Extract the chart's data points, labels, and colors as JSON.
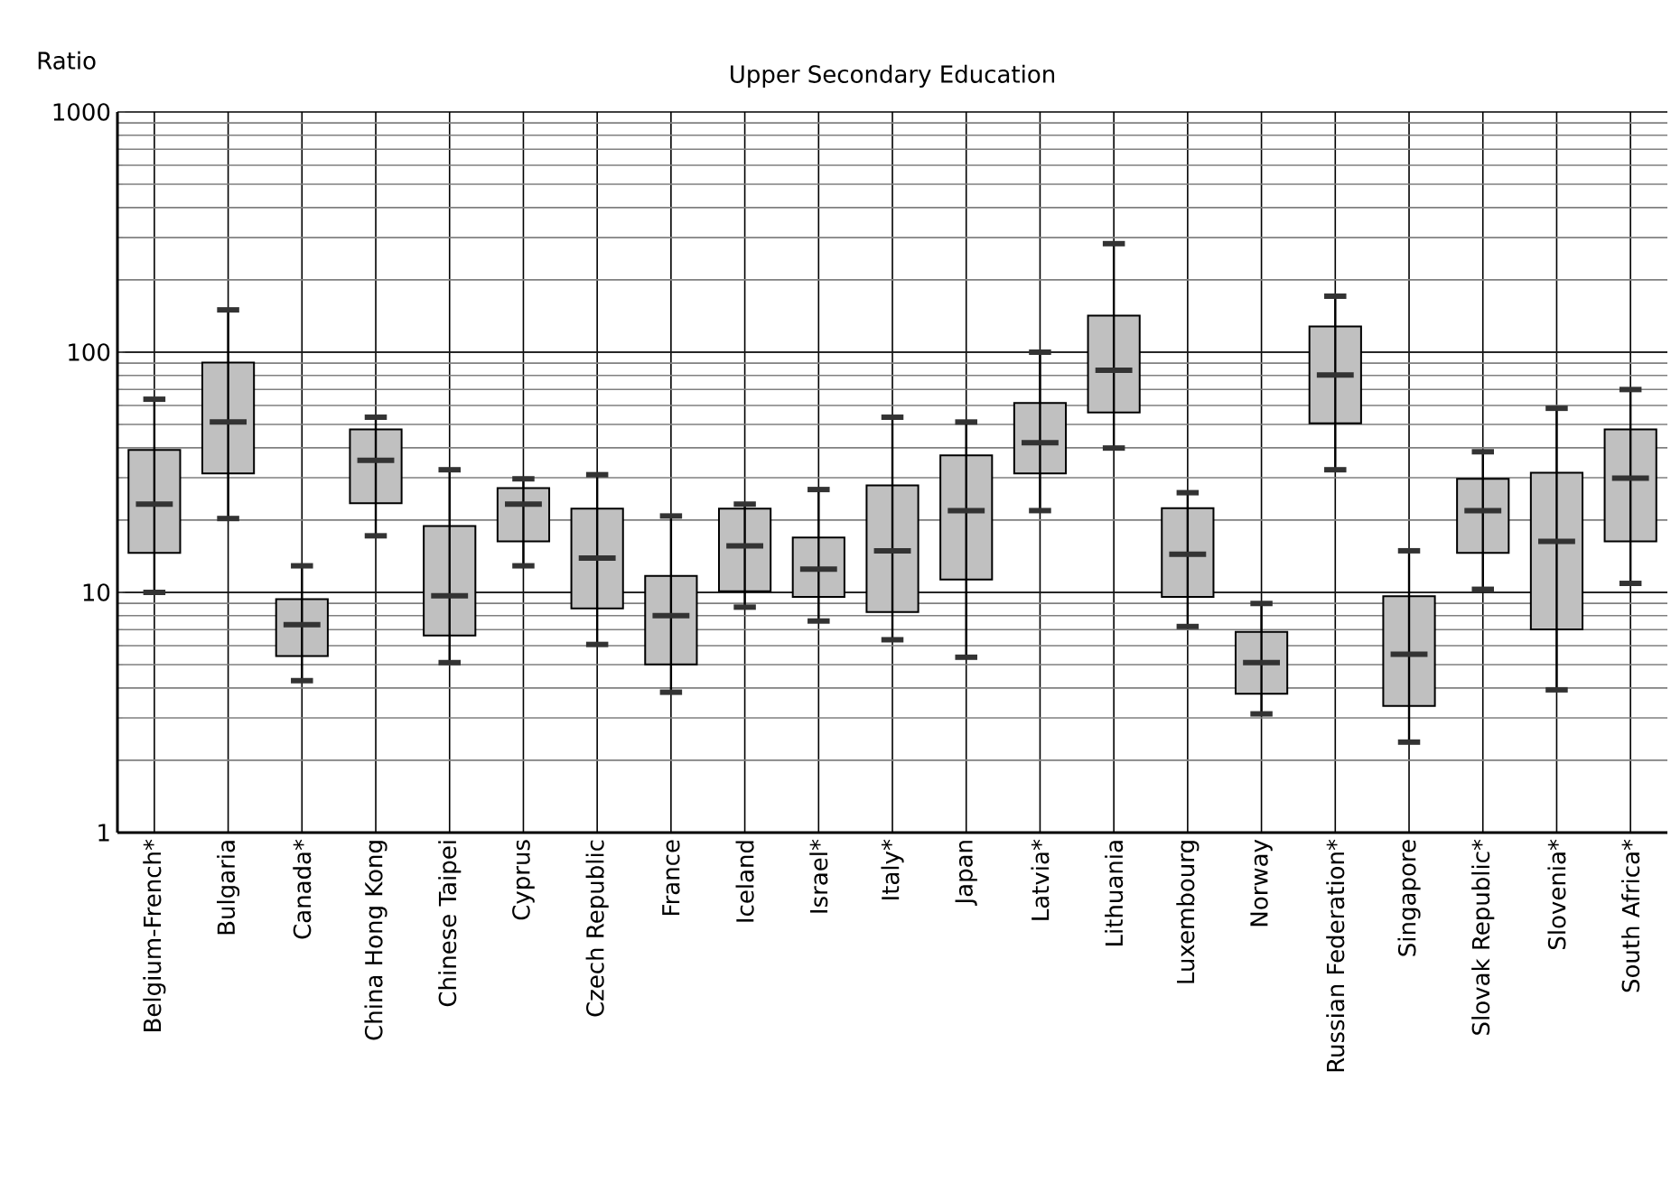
{
  "chart_data": {
    "type": "box",
    "title": "Upper Secondary Education",
    "ylabel": "Ratio",
    "categories": [
      "Belgium-French*",
      "Bulgaria",
      "Canada*",
      "China Hong Kong",
      "Chinese Taipei",
      "Cyprus",
      "Czech Republic",
      "France",
      "Iceland",
      "Israel*",
      "Italy*",
      "Japan",
      "Latvia*",
      "Lithuania",
      "Luxembourg",
      "Norway",
      "Russian Federation*",
      "Singapore",
      "Slovak Republic*",
      "Slovenia*",
      "South Africa*"
    ],
    "boxes": [
      {
        "low": 10.0,
        "q1": 14.6,
        "median": 23.3,
        "q3": 39.2,
        "high": 63.7
      },
      {
        "low": 20.3,
        "q1": 31.3,
        "median": 51.2,
        "q3": 90.6,
        "high": 150
      },
      {
        "low": 4.29,
        "q1": 5.43,
        "median": 7.34,
        "q3": 9.36,
        "high": 12.9
      },
      {
        "low": 17.2,
        "q1": 23.5,
        "median": 35.5,
        "q3": 47.7,
        "high": 53.6
      },
      {
        "low": 5.1,
        "q1": 6.62,
        "median": 9.68,
        "q3": 18.9,
        "high": 32.4
      },
      {
        "low": 12.9,
        "q1": 16.3,
        "median": 23.3,
        "q3": 27.2,
        "high": 29.7
      },
      {
        "low": 6.07,
        "q1": 8.58,
        "median": 13.9,
        "q3": 22.3,
        "high": 30.9
      },
      {
        "low": 3.84,
        "q1": 5.01,
        "median": 8.0,
        "q3": 11.7,
        "high": 20.8
      },
      {
        "low": 8.68,
        "q1": 10.1,
        "median": 15.6,
        "q3": 22.3,
        "high": 23.3
      },
      {
        "low": 7.6,
        "q1": 9.58,
        "median": 12.5,
        "q3": 16.9,
        "high": 26.8
      },
      {
        "low": 6.35,
        "q1": 8.28,
        "median": 14.9,
        "q3": 27.9,
        "high": 53.6
      },
      {
        "low": 5.37,
        "q1": 11.3,
        "median": 21.9,
        "q3": 37.2,
        "high": 51.2
      },
      {
        "low": 21.9,
        "q1": 31.3,
        "median": 42.0,
        "q3": 61.5,
        "high": 100
      },
      {
        "low": 39.9,
        "q1": 56.1,
        "median": 84.1,
        "q3": 142,
        "high": 283
      },
      {
        "low": 7.21,
        "q1": 9.58,
        "median": 14.4,
        "q3": 22.4,
        "high": 26.0
      },
      {
        "low": 3.12,
        "q1": 3.78,
        "median": 5.1,
        "q3": 6.85,
        "high": 8.99
      },
      {
        "low": 32.4,
        "q1": 50.6,
        "median": 80.3,
        "q3": 128,
        "high": 171
      },
      {
        "low": 2.38,
        "q1": 3.37,
        "median": 5.53,
        "q3": 9.63,
        "high": 14.9
      },
      {
        "low": 10.3,
        "q1": 14.6,
        "median": 21.9,
        "q3": 29.7,
        "high": 38.5
      },
      {
        "low": 3.93,
        "q1": 7.01,
        "median": 16.3,
        "q3": 31.5,
        "high": 58.4
      },
      {
        "low": 10.9,
        "q1": 16.3,
        "median": 29.9,
        "q3": 47.7,
        "high": 69.9
      }
    ],
    "color": "#c0c0c0",
    "ylim": [
      1,
      1000
    ],
    "yticks": [
      1,
      10,
      100,
      1000
    ],
    "log": true,
    "grid": true
  }
}
